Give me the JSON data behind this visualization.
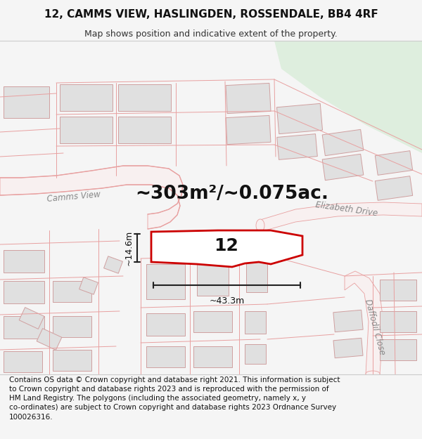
{
  "title": "12, CAMMS VIEW, HASLINGDEN, ROSSENDALE, BB4 4RF",
  "subtitle": "Map shows position and indicative extent of the property.",
  "area_text": "~303m²/~0.075ac.",
  "property_number": "12",
  "width_label": "~43.3m",
  "height_label": "~14.6m",
  "road_label_camms": "Camms View",
  "road_label_eliz": "Elizabeth Drive",
  "road_label_daffodil": "Daffodil Close",
  "footer_text": "Contains OS data © Crown copyright and database right 2021. This information is subject to Crown copyright and database rights 2023 and is reproduced with the permission of HM Land Registry. The polygons (including the associated geometry, namely x, y co-ordinates) are subject to Crown copyright and database rights 2023 Ordnance Survey 100026316.",
  "bg_color": "#f5f5f5",
  "map_bg": "#ffffff",
  "road_line_color": "#e8a0a0",
  "property_outline": "#cc0000",
  "building_fill": "#e0e0e0",
  "building_stroke": "#d0a0a0",
  "green_fill": "#deeede",
  "road_label_color": "#aaaaaa",
  "dim_color": "#222222",
  "title_fontsize": 11,
  "subtitle_fontsize": 9,
  "area_fontsize": 19,
  "property_num_fontsize": 18,
  "road_label_fontsize": 8.5,
  "footer_fontsize": 7.5
}
